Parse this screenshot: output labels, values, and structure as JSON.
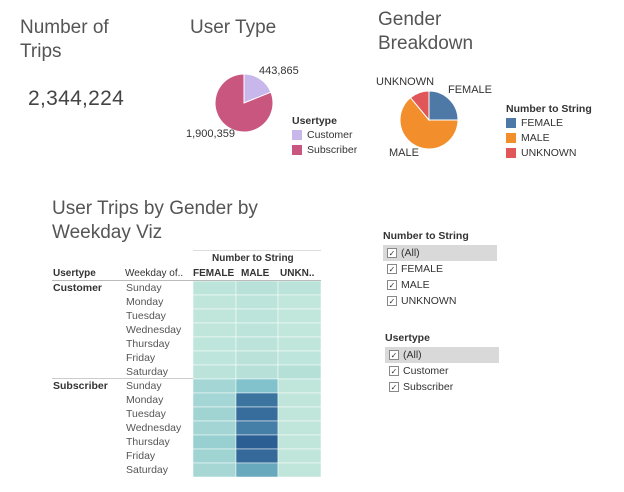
{
  "kpi": {
    "title_line1": "Number of",
    "title_line2": "Trips",
    "value": "2,344,224"
  },
  "user_type": {
    "title": "User Type",
    "legend_title": "Usertype",
    "items": [
      {
        "label": "Customer",
        "color": "#c8b7ea"
      },
      {
        "label": "Subscriber",
        "color": "#c9567e"
      }
    ],
    "labels": {
      "customer": "443,865",
      "subscriber": "1,900,359"
    }
  },
  "gender": {
    "title_line1": "Gender",
    "title_line2": "Breakdown",
    "legend_title": "Number to String",
    "items": [
      {
        "label": "FEMALE",
        "color": "#4e79a7"
      },
      {
        "label": "MALE",
        "color": "#f28e2b"
      },
      {
        "label": "UNKNOWN",
        "color": "#e15759"
      }
    ],
    "labels": {
      "female": "FEMALE",
      "male": "MALE",
      "unknown": "UNKNOWN"
    }
  },
  "heatmap": {
    "title_line1": "User Trips by Gender by",
    "title_line2": "Weekday Viz",
    "group_header": "Number to String",
    "col_usertype": "Usertype",
    "col_weekday": "Weekday of..",
    "columns": [
      "FEMALE",
      "MALE",
      "UNKN.."
    ],
    "groups": [
      {
        "name": "Customer",
        "days": [
          "Sunday",
          "Monday",
          "Tuesday",
          "Wednesday",
          "Thursday",
          "Friday",
          "Saturday"
        ]
      },
      {
        "name": "Subscriber",
        "days": [
          "Sunday",
          "Monday",
          "Tuesday",
          "Wednesday",
          "Thursday",
          "Friday",
          "Saturday"
        ]
      }
    ]
  },
  "filters": {
    "gender": {
      "title": "Number to String",
      "options": [
        "(All)",
        "FEMALE",
        "MALE",
        "UNKNOWN"
      ]
    },
    "usertype": {
      "title": "Usertype",
      "options": [
        "(All)",
        "Customer",
        "Subscriber"
      ]
    }
  },
  "chart_data": [
    {
      "type": "pie",
      "title": "User Type",
      "categories": [
        "Customer",
        "Subscriber"
      ],
      "values": [
        443865,
        1900359
      ],
      "colors": [
        "#c8b7ea",
        "#c9567e"
      ]
    },
    {
      "type": "pie",
      "title": "Gender Breakdown",
      "categories": [
        "FEMALE",
        "MALE",
        "UNKNOWN"
      ],
      "values": [
        0.25,
        0.64,
        0.11
      ],
      "colors": [
        "#4e79a7",
        "#f28e2b",
        "#e15759"
      ]
    },
    {
      "type": "heatmap",
      "title": "User Trips by Gender by Weekday Viz",
      "x": [
        "FEMALE",
        "MALE",
        "UNKNOWN"
      ],
      "rows": [
        "Customer Sunday",
        "Customer Monday",
        "Customer Tuesday",
        "Customer Wednesday",
        "Customer Thursday",
        "Customer Friday",
        "Customer Saturday",
        "Subscriber Sunday",
        "Subscriber Monday",
        "Subscriber Tuesday",
        "Subscriber Wednesday",
        "Subscriber Thursday",
        "Subscriber Friday",
        "Subscriber Saturday"
      ],
      "values": [
        [
          0.05,
          0.08,
          0.06
        ],
        [
          0.03,
          0.05,
          0.02
        ],
        [
          0.03,
          0.05,
          0.02
        ],
        [
          0.03,
          0.05,
          0.02
        ],
        [
          0.04,
          0.06,
          0.03
        ],
        [
          0.04,
          0.07,
          0.04
        ],
        [
          0.06,
          0.09,
          0.1
        ],
        [
          0.22,
          0.45,
          0.03
        ],
        [
          0.22,
          0.85,
          0.03
        ],
        [
          0.24,
          0.88,
          0.03
        ],
        [
          0.23,
          0.8,
          0.03
        ],
        [
          0.3,
          0.95,
          0.03
        ],
        [
          0.24,
          0.9,
          0.03
        ],
        [
          0.2,
          0.6,
          0.03
        ]
      ]
    }
  ]
}
